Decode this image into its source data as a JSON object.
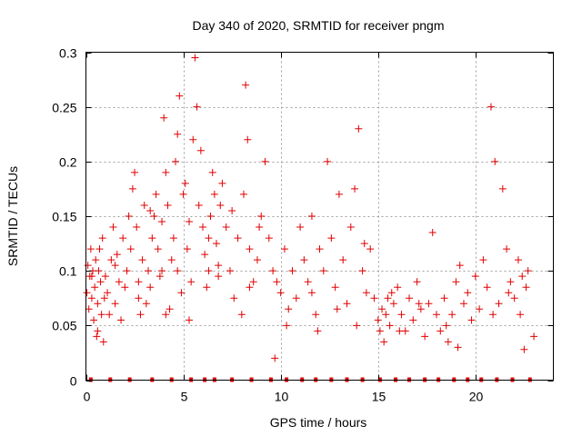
{
  "chart_data": {
    "type": "scatter",
    "title": "Day 340 of 2020, SRMTID for receiver pngm",
    "xlabel": "GPS time / hours",
    "ylabel": "SRMTID / TECUs",
    "xlim": [
      0,
      24
    ],
    "ylim": [
      0,
      0.3
    ],
    "x_ticks": [
      0,
      5,
      10,
      15,
      20
    ],
    "y_ticks": [
      0,
      0.05,
      0.1,
      0.15,
      0.2,
      0.25,
      0.3
    ],
    "x_tick_labels": [
      "0",
      "5",
      "10",
      "15",
      "20"
    ],
    "y_tick_labels": [
      "0",
      "0.05",
      "0.1",
      "0.15",
      "0.2",
      "0.25",
      "0.3"
    ],
    "grid": true,
    "series_color": "#e00000",
    "marker": "plus",
    "zero_markers_x": [
      0.25,
      1.25,
      2.25,
      3.4,
      4.4,
      5.4,
      6.1,
      6.6,
      7.5,
      8.5,
      9.5,
      10.3,
      11.1,
      11.8,
      12.6,
      13.4,
      14.2,
      15.1,
      15.9,
      16.6,
      17.4,
      18.1,
      18.9,
      19.6,
      20.3,
      21.1,
      21.9,
      22.8
    ],
    "points": [
      [
        0.05,
        0.08
      ],
      [
        0.1,
        0.105
      ],
      [
        0.15,
        0.065
      ],
      [
        0.2,
        0.095
      ],
      [
        0.25,
        0.12
      ],
      [
        0.3,
        0.075
      ],
      [
        0.35,
        0.1
      ],
      [
        0.4,
        0.055
      ],
      [
        0.45,
        0.085
      ],
      [
        0.5,
        0.11
      ],
      [
        0.55,
        0.04
      ],
      [
        0.6,
        0.07
      ],
      [
        0.65,
        0.1
      ],
      [
        0.7,
        0.12
      ],
      [
        0.75,
        0.09
      ],
      [
        0.8,
        0.06
      ],
      [
        0.85,
        0.13
      ],
      [
        0.9,
        0.035
      ],
      [
        0.95,
        0.075
      ],
      [
        1.0,
        0.095
      ],
      [
        1.1,
        0.08
      ],
      [
        1.2,
        0.06
      ],
      [
        1.3,
        0.11
      ],
      [
        1.4,
        0.14
      ],
      [
        1.5,
        0.07
      ],
      [
        1.6,
        0.115
      ],
      [
        1.7,
        0.09
      ],
      [
        1.8,
        0.055
      ],
      [
        1.9,
        0.13
      ],
      [
        2.0,
        0.085
      ],
      [
        2.1,
        0.1
      ],
      [
        2.2,
        0.15
      ],
      [
        2.3,
        0.12
      ],
      [
        2.4,
        0.175
      ],
      [
        2.5,
        0.19
      ],
      [
        2.6,
        0.14
      ],
      [
        2.7,
        0.09
      ],
      [
        2.8,
        0.06
      ],
      [
        2.9,
        0.11
      ],
      [
        3.0,
        0.16
      ],
      [
        3.1,
        0.07
      ],
      [
        3.2,
        0.1
      ],
      [
        3.3,
        0.085
      ],
      [
        3.4,
        0.13
      ],
      [
        3.5,
        0.15
      ],
      [
        3.6,
        0.17
      ],
      [
        3.7,
        0.12
      ],
      [
        3.8,
        0.095
      ],
      [
        3.9,
        0.145
      ],
      [
        4.0,
        0.24
      ],
      [
        4.1,
        0.19
      ],
      [
        4.2,
        0.16
      ],
      [
        4.3,
        0.065
      ],
      [
        4.4,
        0.11
      ],
      [
        4.5,
        0.13
      ],
      [
        4.6,
        0.2
      ],
      [
        4.7,
        0.225
      ],
      [
        4.8,
        0.26
      ],
      [
        4.9,
        0.08
      ],
      [
        5.0,
        0.17
      ],
      [
        5.1,
        0.18
      ],
      [
        5.2,
        0.12
      ],
      [
        5.3,
        0.055
      ],
      [
        5.4,
        0.09
      ],
      [
        5.5,
        0.22
      ],
      [
        5.6,
        0.295
      ],
      [
        5.7,
        0.25
      ],
      [
        5.8,
        0.16
      ],
      [
        5.9,
        0.21
      ],
      [
        6.0,
        0.14
      ],
      [
        6.1,
        0.115
      ],
      [
        6.2,
        0.085
      ],
      [
        6.3,
        0.1
      ],
      [
        6.4,
        0.15
      ],
      [
        6.5,
        0.19
      ],
      [
        6.6,
        0.17
      ],
      [
        6.7,
        0.125
      ],
      [
        6.8,
        0.095
      ],
      [
        6.9,
        0.16
      ],
      [
        7.0,
        0.18
      ],
      [
        7.2,
        0.14
      ],
      [
        7.4,
        0.1
      ],
      [
        7.6,
        0.075
      ],
      [
        7.8,
        0.13
      ],
      [
        8.0,
        0.06
      ],
      [
        8.1,
        0.17
      ],
      [
        8.2,
        0.27
      ],
      [
        8.3,
        0.22
      ],
      [
        8.4,
        0.12
      ],
      [
        8.6,
        0.09
      ],
      [
        8.8,
        0.11
      ],
      [
        9.0,
        0.15
      ],
      [
        9.2,
        0.2
      ],
      [
        9.4,
        0.13
      ],
      [
        9.6,
        0.1
      ],
      [
        9.8,
        0.09
      ],
      [
        10.0,
        0.08
      ],
      [
        10.2,
        0.12
      ],
      [
        10.4,
        0.065
      ],
      [
        10.6,
        0.1
      ],
      [
        10.8,
        0.075
      ],
      [
        11.0,
        0.14
      ],
      [
        11.2,
        0.11
      ],
      [
        11.4,
        0.09
      ],
      [
        11.6,
        0.08
      ],
      [
        11.8,
        0.06
      ],
      [
        12.0,
        0.12
      ],
      [
        12.2,
        0.1
      ],
      [
        12.4,
        0.2
      ],
      [
        12.6,
        0.13
      ],
      [
        12.8,
        0.085
      ],
      [
        13.0,
        0.17
      ],
      [
        13.2,
        0.11
      ],
      [
        13.4,
        0.07
      ],
      [
        13.6,
        0.14
      ],
      [
        13.8,
        0.175
      ],
      [
        14.0,
        0.23
      ],
      [
        14.2,
        0.1
      ],
      [
        14.4,
        0.08
      ],
      [
        14.6,
        0.12
      ],
      [
        14.8,
        0.075
      ],
      [
        15.0,
        0.055
      ],
      [
        15.1,
        0.045
      ],
      [
        15.2,
        0.065
      ],
      [
        15.3,
        0.035
      ],
      [
        15.4,
        0.06
      ],
      [
        15.5,
        0.075
      ],
      [
        15.6,
        0.05
      ],
      [
        15.8,
        0.07
      ],
      [
        16.0,
        0.085
      ],
      [
        16.2,
        0.06
      ],
      [
        16.4,
        0.045
      ],
      [
        16.6,
        0.075
      ],
      [
        16.8,
        0.055
      ],
      [
        17.0,
        0.09
      ],
      [
        17.2,
        0.065
      ],
      [
        17.4,
        0.04
      ],
      [
        17.6,
        0.07
      ],
      [
        17.8,
        0.135
      ],
      [
        18.0,
        0.06
      ],
      [
        18.2,
        0.045
      ],
      [
        18.4,
        0.075
      ],
      [
        18.6,
        0.035
      ],
      [
        18.8,
        0.06
      ],
      [
        19.0,
        0.09
      ],
      [
        19.2,
        0.105
      ],
      [
        19.4,
        0.07
      ],
      [
        19.6,
        0.08
      ],
      [
        19.8,
        0.055
      ],
      [
        20.0,
        0.095
      ],
      [
        20.2,
        0.065
      ],
      [
        20.4,
        0.11
      ],
      [
        20.6,
        0.085
      ],
      [
        20.8,
        0.25
      ],
      [
        21.0,
        0.2
      ],
      [
        21.2,
        0.07
      ],
      [
        21.4,
        0.175
      ],
      [
        21.6,
        0.12
      ],
      [
        21.8,
        0.09
      ],
      [
        22.0,
        0.075
      ],
      [
        22.2,
        0.11
      ],
      [
        22.4,
        0.095
      ],
      [
        22.5,
        0.028
      ],
      [
        22.6,
        0.085
      ],
      [
        22.7,
        0.1
      ],
      [
        23.0,
        0.04
      ],
      [
        0.3,
        0.095
      ],
      [
        0.6,
        0.045
      ],
      [
        1.5,
        0.105
      ],
      [
        2.7,
        0.075
      ],
      [
        3.3,
        0.155
      ],
      [
        4.1,
        0.06
      ],
      [
        4.7,
        0.1
      ],
      [
        5.3,
        0.145
      ],
      [
        6.3,
        0.13
      ],
      [
        7.5,
        0.155
      ],
      [
        8.9,
        0.14
      ],
      [
        9.7,
        0.02
      ],
      [
        11.6,
        0.15
      ],
      [
        12.9,
        0.065
      ],
      [
        13.9,
        0.05
      ],
      [
        15.7,
        0.08
      ],
      [
        16.1,
        0.045
      ],
      [
        17.1,
        0.07
      ],
      [
        18.5,
        0.05
      ],
      [
        19.1,
        0.03
      ],
      [
        20.9,
        0.06
      ],
      [
        21.7,
        0.08
      ],
      [
        22.3,
        0.06
      ],
      [
        10.3,
        0.05
      ],
      [
        11.9,
        0.045
      ],
      [
        14.3,
        0.125
      ],
      [
        3.9,
        0.1
      ],
      [
        8.4,
        0.085
      ],
      [
        6.8,
        0.105
      ]
    ]
  }
}
